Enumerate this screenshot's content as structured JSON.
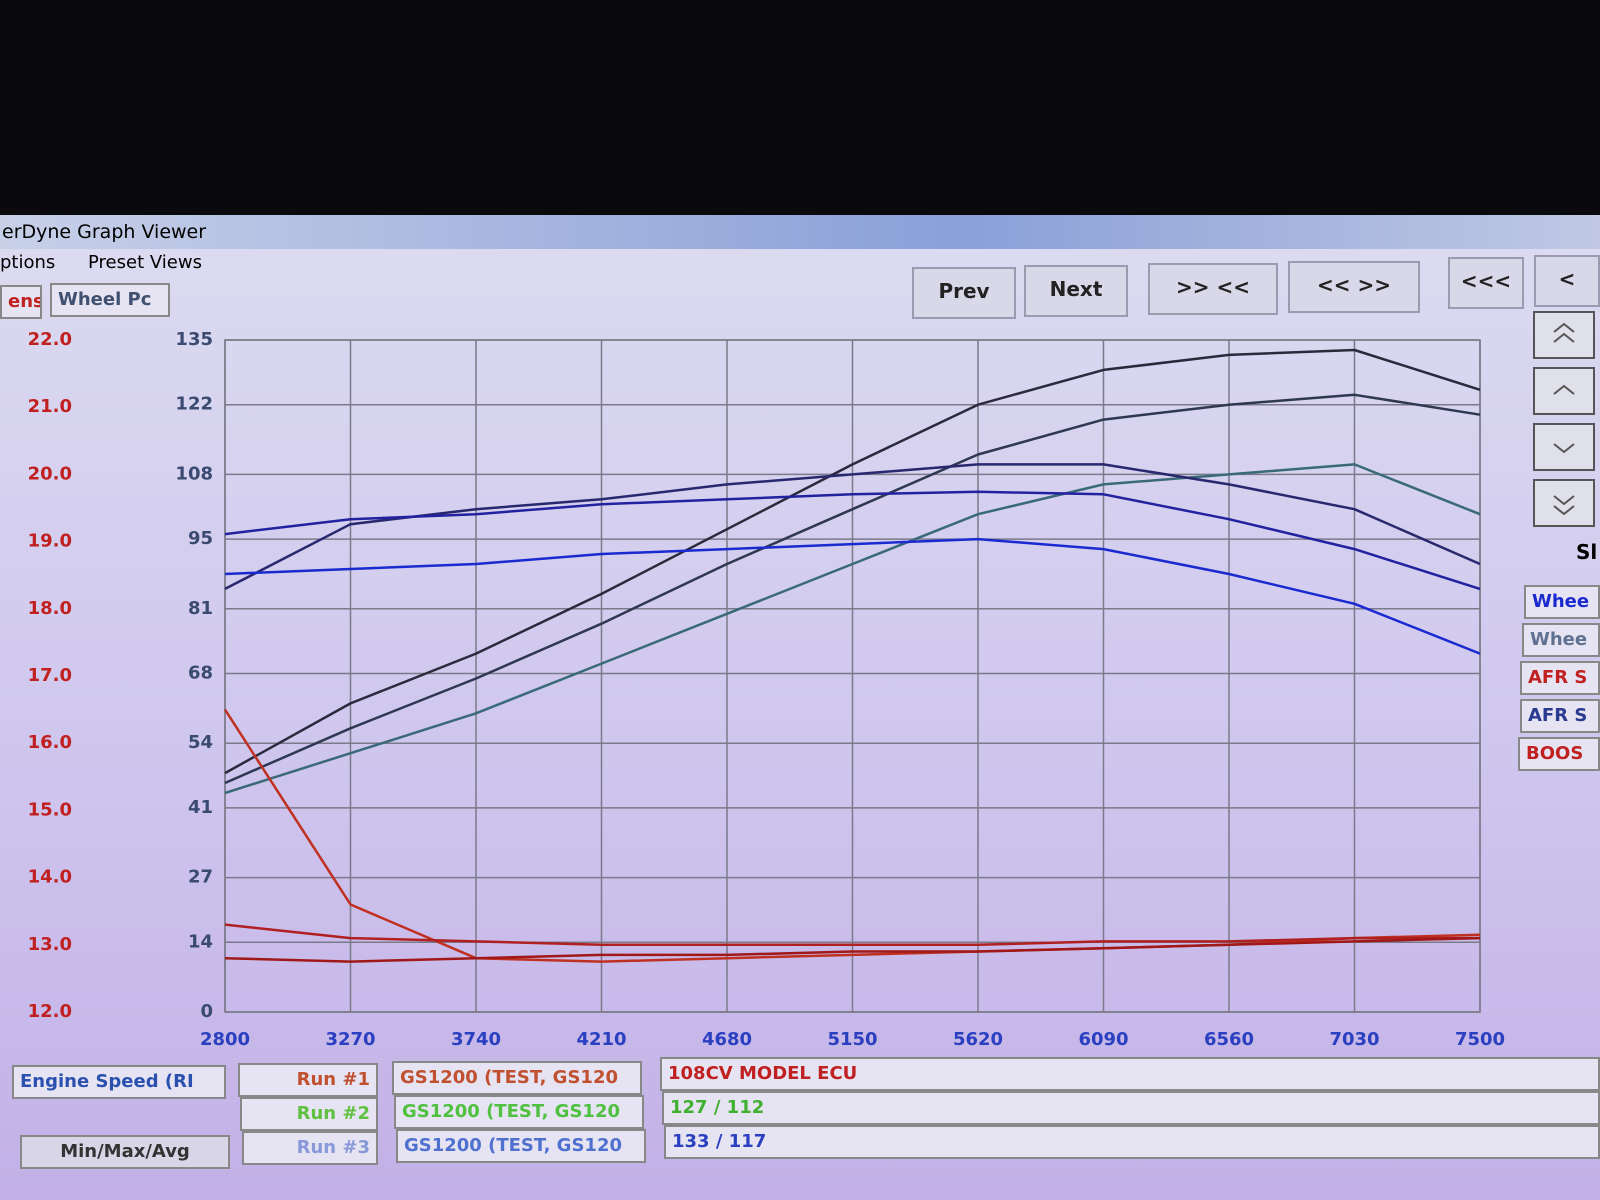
{
  "window": {
    "title": "erDyne Graph Viewer"
  },
  "menu": [
    "ptions",
    "Preset Views"
  ],
  "toolbar": [
    "Prev",
    "Next",
    ">> <<",
    "<< >>",
    "<<<",
    "<"
  ],
  "left_tabs": [
    "ens",
    "Wheel Pc"
  ],
  "right_panel": [
    "Sl",
    "Whee",
    "Whee",
    "AFR S",
    "AFR S",
    "BOOS"
  ],
  "bottom": {
    "axis_select": "Engine Speed (RI",
    "summary_button": "Min/Max/Avg",
    "runs": [
      {
        "label": "Run #1",
        "file": "GS1200 (TEST, GS120",
        "info": "108CV MODEL ECU"
      },
      {
        "label": "Run #2",
        "file": "GS1200 (TEST, GS120",
        "info": "127 / 112"
      },
      {
        "label": "Run #3",
        "file": "GS1200 (TEST, GS120",
        "info": "133 / 117"
      }
    ]
  },
  "chart_data": {
    "type": "line",
    "grid": true,
    "x": [
      2800,
      3270,
      3740,
      4210,
      4680,
      5150,
      5620,
      6090,
      6560,
      7030,
      7500
    ],
    "xlim": [
      2800,
      7500
    ],
    "xticks": [
      2800,
      3270,
      3740,
      4210,
      4680,
      5150,
      5620,
      6090,
      6560,
      7030,
      7500
    ],
    "ylim": [
      0,
      135
    ],
    "yticks": [
      0,
      14,
      27,
      41,
      54,
      68,
      81,
      95,
      108,
      122,
      135
    ],
    "y2lim": [
      12,
      22
    ],
    "y2ticks": [
      {
        "value": 12,
        "label": "12.0"
      },
      {
        "value": 13,
        "label": "13.0"
      },
      {
        "value": 14,
        "label": "14.0"
      },
      {
        "value": 15,
        "label": "15.0"
      },
      {
        "value": 16,
        "label": "16.0"
      },
      {
        "value": 17,
        "label": "17.0"
      },
      {
        "value": 18,
        "label": "18.0"
      },
      {
        "value": 19,
        "label": "19.0"
      },
      {
        "value": 20,
        "label": "20.0"
      },
      {
        "value": 21,
        "label": "21.0"
      },
      {
        "value": 22,
        "label": "22.0"
      }
    ],
    "series": [
      {
        "color": "#2a2a3c",
        "values": [
          48,
          62,
          72,
          84,
          97,
          110,
          122,
          129,
          132,
          133,
          125
        ]
      },
      {
        "color": "#2e3850",
        "values": [
          46,
          57,
          67,
          78,
          90,
          101,
          112,
          119,
          122,
          124,
          120
        ]
      },
      {
        "color": "#3a6a78",
        "values": [
          44,
          52,
          60,
          70,
          80,
          90,
          100,
          106,
          108,
          110,
          100
        ]
      },
      {
        "color": "#28286e",
        "values": [
          85,
          98,
          101,
          103,
          106,
          108,
          110,
          110,
          106,
          101,
          90
        ]
      },
      {
        "color": "#2222a0",
        "values": [
          96,
          99,
          100,
          102,
          103,
          104,
          104.5,
          104,
          99,
          93,
          85
        ]
      },
      {
        "color": "#1a2ad0",
        "values": [
          88,
          89,
          90,
          92,
          93,
          94,
          95,
          93,
          88,
          82,
          72
        ]
      },
      {
        "color": "#c03020",
        "axis": "y2",
        "values": [
          16.5,
          13.6,
          12.8,
          12.75,
          12.8,
          12.85,
          12.9,
          12.95,
          13.0,
          13.1,
          13.15
        ]
      },
      {
        "color": "#b02020",
        "axis": "y2",
        "values": [
          13.3,
          13.1,
          13.05,
          13.0,
          13.0,
          13.0,
          13.0,
          13.05,
          13.05,
          13.1,
          13.1
        ]
      },
      {
        "color": "#a01818",
        "axis": "y2",
        "values": [
          12.8,
          12.75,
          12.8,
          12.85,
          12.85,
          12.9,
          12.9,
          12.95,
          13.0,
          13.05,
          13.1
        ]
      }
    ]
  }
}
